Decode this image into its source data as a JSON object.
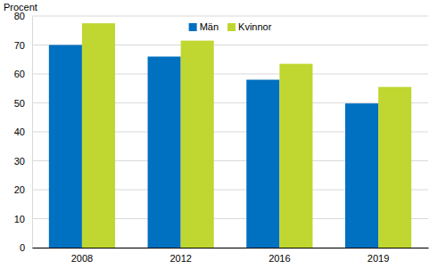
{
  "chart_data": {
    "type": "bar",
    "y_label": "Procent",
    "categories": [
      "2008",
      "2012",
      "2016",
      "2019"
    ],
    "series": [
      {
        "name": "Män",
        "color": "#0070c0",
        "values": [
          70,
          66,
          58,
          49.8
        ]
      },
      {
        "name": "Kvinnor",
        "color": "#bfd730",
        "values": [
          77.5,
          71.5,
          63.5,
          55.5
        ]
      }
    ],
    "ylim": [
      0,
      80
    ],
    "yticks": [
      0,
      10,
      20,
      30,
      40,
      50,
      60,
      70,
      80
    ],
    "grid": true,
    "legend": "top"
  }
}
